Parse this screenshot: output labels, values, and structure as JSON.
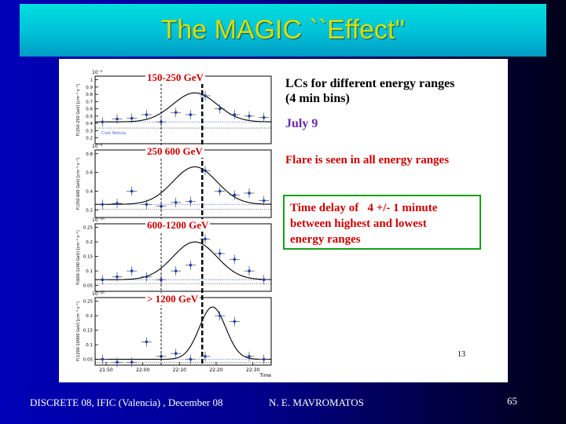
{
  "slide": {
    "title": "The MAGIC ``Effect''",
    "footer_left": "DISCRETE 08, IFIC (Valencia) , December 08",
    "footer_center": "N. E. MAVROMATOS",
    "slide_number": "65"
  },
  "figure": {
    "heading_line1": "LCs for different energy ranges",
    "heading_line2": "(4 min bins)",
    "date_label": "July 9",
    "flare_text": "Flare is seen in all energy ranges",
    "delay_line1": "Time delay of   4 +/- 1 minute",
    "delay_line2": "between highest and lowest",
    "delay_line3": "energy ranges",
    "page_number": "13",
    "crab_label": "Crab Nebula",
    "time_axis_label": "Time",
    "time_ticks": [
      "21:50",
      "22:00",
      "22:10",
      "22:20",
      "22:30"
    ]
  },
  "chart_data": [
    {
      "type": "scatter",
      "title": "150-250 GeV",
      "ylabel": "F(150-250 GeV) [cm⁻² s⁻¹]",
      "exponent_label": "10⁻⁹",
      "y_ticks": [
        "1",
        "0.9",
        "0.8",
        "0.7",
        "0.6",
        "0.5",
        "0.4",
        "0.3",
        "0.2"
      ],
      "points": [
        0.42,
        0.46,
        0.47,
        0.52,
        0.42,
        0.55,
        0.52,
        0.78,
        0.6,
        0.52,
        0.5,
        0.48
      ],
      "fit_peak": 0.82
    },
    {
      "type": "scatter",
      "title": "250  600 GeV",
      "ylabel": "F(250-600 GeV) [cm⁻² s⁻¹]",
      "exponent_label": "10⁻⁹",
      "y_ticks": [
        "0.8",
        "0.6",
        "0.4",
        "0.2"
      ],
      "points": [
        0.26,
        0.27,
        0.4,
        0.26,
        0.24,
        0.28,
        0.29,
        0.62,
        0.4,
        0.36,
        0.38,
        0.3
      ],
      "fit_peak": 0.66
    },
    {
      "type": "scatter",
      "title": "600-1200 GeV",
      "ylabel": "F(600-1200 GeV) [cm⁻² s⁻¹]",
      "exponent_label": "10⁻¹⁰",
      "y_ticks": [
        "0.25",
        "0.2",
        "0.15",
        "0.1",
        "0.05"
      ],
      "points": [
        0.07,
        0.08,
        0.1,
        0.08,
        0.07,
        0.1,
        0.12,
        0.21,
        0.16,
        0.14,
        0.1,
        0.07
      ],
      "fit_peak": 0.2
    },
    {
      "type": "scatter",
      "title": "> 1200 GeV",
      "ylabel": "F(1200-10000 GeV) [cm⁻² s⁻¹]",
      "exponent_label": "10⁻¹⁰",
      "y_ticks": [
        "0.25",
        "0.2",
        "0.15",
        "0.1",
        "0.05"
      ],
      "points": [
        0.05,
        0.04,
        0.04,
        0.11,
        0.06,
        0.07,
        0.05,
        0.06,
        0.2,
        0.18,
        0.06,
        0.05
      ],
      "fit_peak": 0.23
    }
  ]
}
